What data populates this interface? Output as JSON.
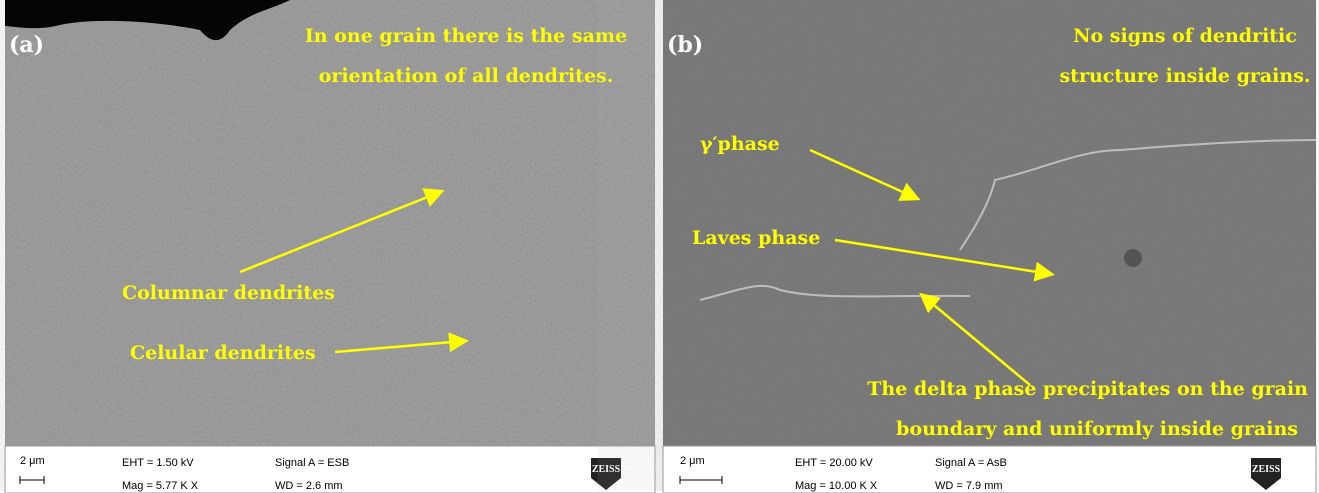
{
  "panels": [
    {
      "label": "(a)",
      "annotations": [
        "In one grain there is the same",
        "orientation of all dendrites.",
        "Columnar dendrites",
        "Celular dendrites"
      ],
      "info": {
        "scale": "2 μm",
        "eht": "EHT =  1.50 kV",
        "mag": "Mag =   5.77 K X",
        "signal": "Signal A = ESB",
        "wd": "WD =  2.6 mm",
        "logo": "ZEISS"
      }
    },
    {
      "label": "(b)",
      "annotations": [
        "No signs of dendritic",
        "structure inside grains.",
        "γ′phase",
        "Laves phase",
        "The delta phase precipitates on the grain",
        "boundary and uniformly inside grains"
      ],
      "info": {
        "scale": "2 μm",
        "eht": "EHT = 20.00 kV",
        "mag": "Mag =   10.00 K X",
        "signal": "Signal A = AsB",
        "wd": "WD =  7.9 mm",
        "logo": "ZEISS"
      }
    }
  ]
}
